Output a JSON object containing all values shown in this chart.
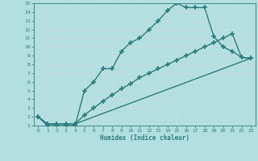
{
  "line1_x": [
    0,
    1,
    2,
    3,
    4,
    5,
    6,
    7,
    8,
    9,
    10,
    11,
    12,
    13,
    14,
    15,
    16,
    17,
    18,
    19,
    20,
    21,
    22,
    23
  ],
  "line1_y": [
    2,
    1,
    1,
    1,
    1,
    5,
    6,
    7.5,
    7.5,
    9.5,
    10.5,
    11,
    12,
    13,
    14.2,
    15,
    14.5,
    14.5,
    14.5,
    11.2,
    10,
    9.5,
    8.8,
    8.7
  ],
  "line2_x": [
    0,
    1,
    2,
    3,
    4,
    5,
    6,
    7,
    8,
    9,
    10,
    11,
    12,
    13,
    14,
    15,
    16,
    17,
    18,
    19,
    20,
    21,
    22,
    23
  ],
  "line2_y": [
    2,
    1.2,
    1.2,
    1.2,
    1.2,
    2.2,
    3,
    3.8,
    4.5,
    5.2,
    5.8,
    6.5,
    7,
    7.5,
    8,
    8.5,
    9,
    9.5,
    10,
    10.5,
    11,
    11.5,
    8.8,
    8.7
  ],
  "line3_x": [
    0,
    1,
    2,
    3,
    4,
    23
  ],
  "line3_y": [
    2,
    1.2,
    1.2,
    1.2,
    1.2,
    8.7
  ],
  "color": "#2d7d7d",
  "bg_color": "#b2dfdf",
  "grid_color": "#d0e8e8",
  "xlabel": "Humidex (Indice chaleur)",
  "xlim": [
    -0.5,
    23.5
  ],
  "ylim": [
    1,
    15
  ],
  "xticks": [
    0,
    1,
    2,
    3,
    4,
    5,
    6,
    7,
    8,
    9,
    10,
    11,
    12,
    13,
    14,
    15,
    16,
    17,
    18,
    19,
    20,
    21,
    22,
    23
  ],
  "yticks": [
    1,
    2,
    3,
    4,
    5,
    6,
    7,
    8,
    9,
    10,
    11,
    12,
    13,
    14,
    15
  ],
  "marker": "+",
  "markersize": 4,
  "linewidth": 1.0
}
